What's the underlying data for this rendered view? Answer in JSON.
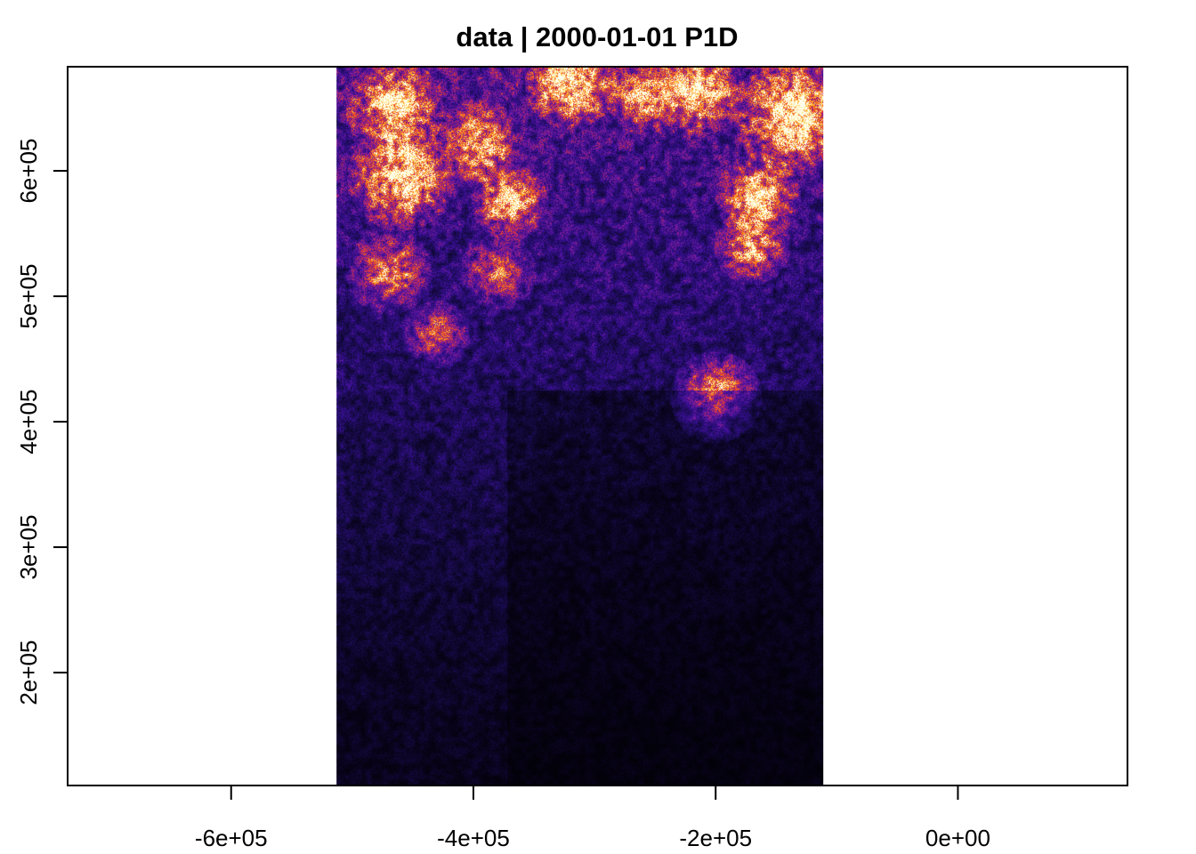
{
  "chart_data": {
    "type": "heatmap",
    "title": "data | 2000-01-01 P1D",
    "xlabel": "",
    "ylabel": "",
    "xlim": [
      -735000,
      140000
    ],
    "ylim": [
      110000,
      683000
    ],
    "x_ticks": [
      {
        "value": -600000,
        "label": "-6e+05"
      },
      {
        "value": -400000,
        "label": "-4e+05"
      },
      {
        "value": -200000,
        "label": "-2e+05"
      },
      {
        "value": 0,
        "label": "0e+00"
      }
    ],
    "y_ticks": [
      {
        "value": 200000,
        "label": "2e+05"
      },
      {
        "value": 300000,
        "label": "3e+05"
      },
      {
        "value": 400000,
        "label": "4e+05"
      },
      {
        "value": 500000,
        "label": "5e+05"
      },
      {
        "value": 600000,
        "label": "6e+05"
      }
    ],
    "raster_extent": {
      "xmin": -513000,
      "xmax": -111000,
      "ymin": 110000,
      "ymax": 683000
    },
    "colormap": [
      "#000000",
      "#1b0c54",
      "#3b0f9a",
      "#7a1ca0",
      "#c2285a",
      "#f0501e",
      "#ff9a1a",
      "#ffe066",
      "#ffffee"
    ],
    "hotspots": [
      {
        "x": -465000,
        "y": 650000,
        "r": 32000,
        "v": 0.85
      },
      {
        "x": -460000,
        "y": 595000,
        "r": 35000,
        "v": 0.9
      },
      {
        "x": -395000,
        "y": 620000,
        "r": 30000,
        "v": 0.7
      },
      {
        "x": -370000,
        "y": 575000,
        "r": 25000,
        "v": 0.8
      },
      {
        "x": -320000,
        "y": 670000,
        "r": 30000,
        "v": 0.85
      },
      {
        "x": -260000,
        "y": 660000,
        "r": 25000,
        "v": 0.65
      },
      {
        "x": -215000,
        "y": 665000,
        "r": 30000,
        "v": 0.9
      },
      {
        "x": -135000,
        "y": 645000,
        "r": 40000,
        "v": 0.95
      },
      {
        "x": -165000,
        "y": 580000,
        "r": 28000,
        "v": 0.85
      },
      {
        "x": -170000,
        "y": 540000,
        "r": 25000,
        "v": 0.7
      },
      {
        "x": -470000,
        "y": 520000,
        "r": 28000,
        "v": 0.6
      },
      {
        "x": -430000,
        "y": 470000,
        "r": 22000,
        "v": 0.5
      },
      {
        "x": -200000,
        "y": 420000,
        "r": 30000,
        "v": 0.75
      },
      {
        "x": -380000,
        "y": 520000,
        "r": 25000,
        "v": 0.45
      }
    ]
  }
}
